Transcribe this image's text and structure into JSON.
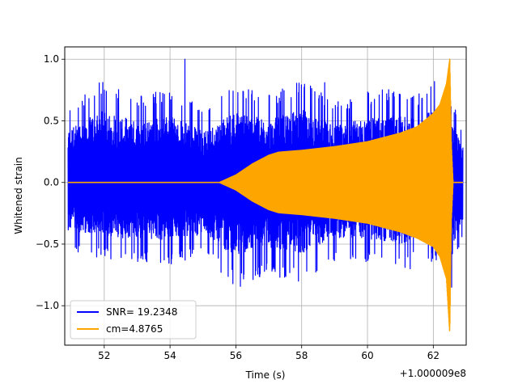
{
  "chart_data": {
    "type": "line",
    "xlabel": "Time (s)",
    "ylabel": "Whitened strain",
    "x_offset_label": "+1.000009e8",
    "xlim": [
      50.8,
      63.0
    ],
    "ylim": [
      -1.32,
      1.1
    ],
    "x_ticks": [
      52,
      54,
      56,
      58,
      60,
      62
    ],
    "x_tick_labels": [
      "52",
      "54",
      "56",
      "58",
      "60",
      "62"
    ],
    "y_ticks": [
      -1.0,
      -0.5,
      0.0,
      0.5,
      1.0
    ],
    "y_tick_labels": [
      "−1.0",
      "−0.5",
      "0.0",
      "0.5",
      "1.0"
    ],
    "grid": true,
    "legend_placement": "lower-left",
    "series": [
      {
        "name": "SNR= 19.2348",
        "color": "#0000ff",
        "kind": "noise-band",
        "x_range": [
          50.9,
          62.9
        ],
        "envelope_x": [
          50.9,
          52,
          53,
          54,
          55,
          56,
          57,
          58,
          59,
          60,
          61,
          61.5,
          62,
          62.3,
          62.5,
          62.7,
          62.9
        ],
        "envelope_upper": [
          0.62,
          0.84,
          0.7,
          0.78,
          0.6,
          0.82,
          0.72,
          0.85,
          0.66,
          0.74,
          0.78,
          0.72,
          0.85,
          0.62,
          0.75,
          0.62,
          0.42
        ],
        "envelope_lower": [
          -0.55,
          -0.62,
          -0.66,
          -0.67,
          -0.6,
          -0.86,
          -0.75,
          -0.82,
          -0.64,
          -0.65,
          -0.72,
          -0.62,
          -0.66,
          -0.6,
          -0.95,
          -0.66,
          -0.43
        ],
        "peaks": [
          {
            "x": 54.45,
            "y": 1.0
          },
          {
            "x": 56.25,
            "y": -0.86
          },
          {
            "x": 58.7,
            "y": 0.81
          },
          {
            "x": 52.2,
            "y": -0.62
          },
          {
            "x": 61.3,
            "y": -0.7
          },
          {
            "x": 62.3,
            "y": -0.62
          }
        ]
      },
      {
        "name": "cm=4.8765",
        "color": "#ffa500",
        "kind": "chirp",
        "envelope_x": [
          50.9,
          55.5,
          56.0,
          56.5,
          57.0,
          57.3,
          58.0,
          59.0,
          60.0,
          61.0,
          61.5,
          62.0,
          62.2,
          62.4,
          62.5,
          62.55,
          62.6,
          62.65,
          62.7,
          62.9
        ],
        "envelope_upper": [
          0.0,
          0.0,
          0.06,
          0.15,
          0.22,
          0.245,
          0.26,
          0.29,
          0.33,
          0.4,
          0.45,
          0.56,
          0.63,
          0.8,
          1.0,
          0.3,
          0.0,
          0.0,
          0.0,
          0.0
        ],
        "envelope_lower": [
          0.0,
          0.0,
          -0.06,
          -0.15,
          -0.22,
          -0.245,
          -0.26,
          -0.29,
          -0.33,
          -0.4,
          -0.45,
          -0.52,
          -0.6,
          -0.78,
          -1.22,
          -0.3,
          0.0,
          0.0,
          0.0,
          0.0
        ],
        "ringdown_x_range": [
          62.65,
          62.9
        ],
        "ringdown_value": 0.0
      }
    ]
  }
}
